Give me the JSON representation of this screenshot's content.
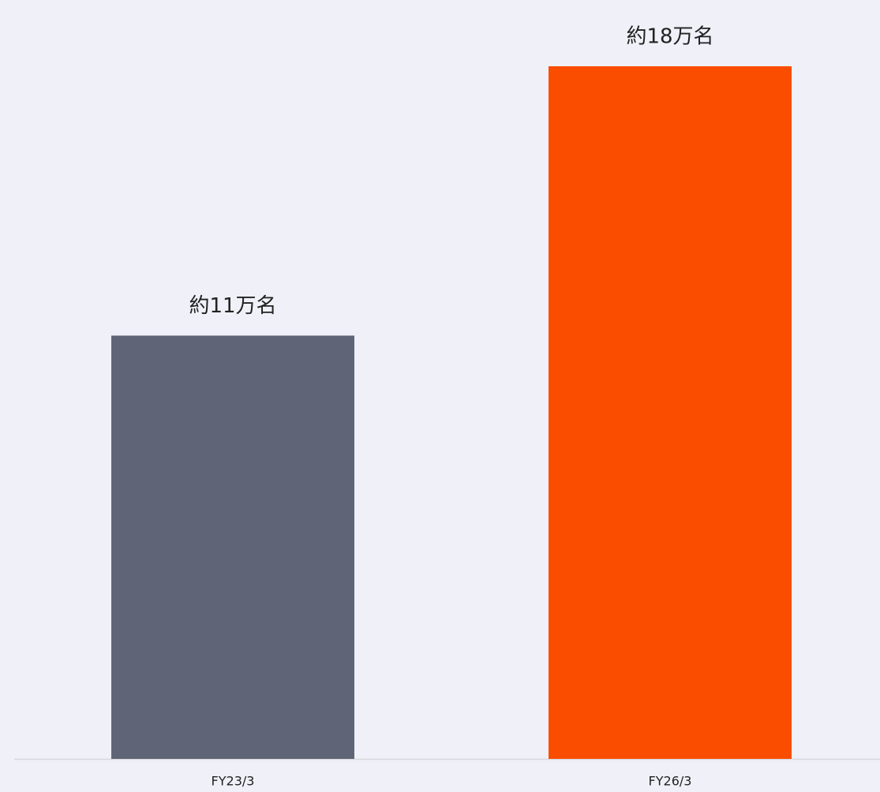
{
  "chart_data": {
    "type": "bar",
    "categories": [
      "FY23/3",
      "FY26/3"
    ],
    "values": [
      11,
      18
    ],
    "value_labels": [
      "約11万名",
      "約18万名"
    ],
    "colors": [
      "#5f6577",
      "#fa4d00"
    ]
  }
}
